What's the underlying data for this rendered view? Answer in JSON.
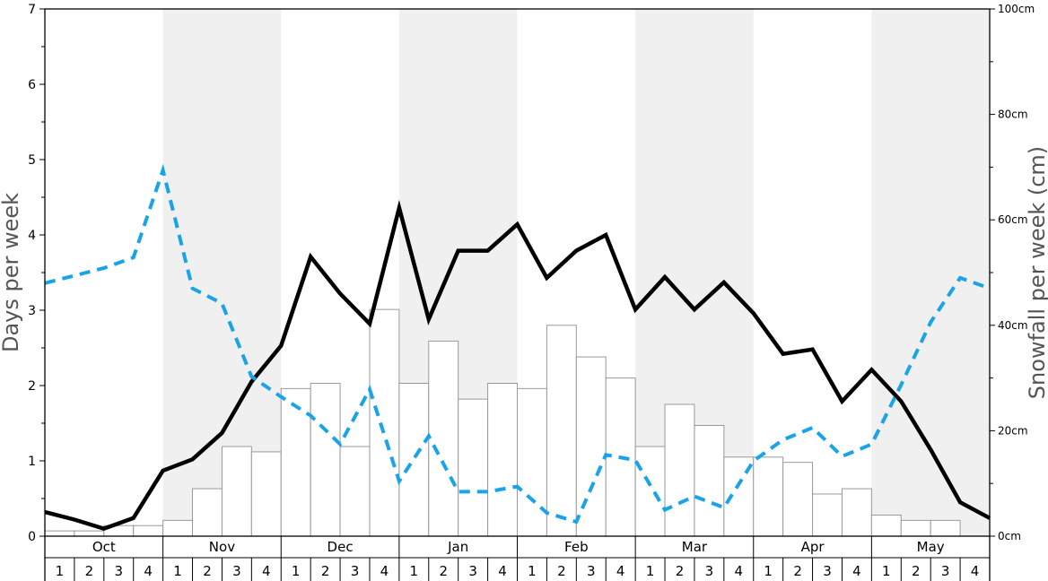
{
  "chart_data": {
    "type": "bar",
    "left_axis": {
      "label": "Days per week",
      "ylim": [
        0,
        7
      ],
      "ticks": [
        "0",
        "1",
        "2",
        "3",
        "4",
        "5",
        "6",
        "7"
      ]
    },
    "right_axis": {
      "label": "Snowfall per week (cm)",
      "ylim": [
        0,
        100
      ],
      "ticks": [
        "0cm",
        "20cm",
        "40cm",
        "60cm",
        "80cm",
        "100cm"
      ]
    },
    "months": [
      "Oct",
      "Nov",
      "Dec",
      "Jan",
      "Feb",
      "Mar",
      "Apr",
      "May"
    ],
    "weeks": [
      "1",
      "2",
      "3",
      "4"
    ],
    "shaded_months": [
      "Nov",
      "Jan",
      "Mar",
      "May"
    ],
    "snowfall_cm": [
      1.0,
      1.0,
      2.0,
      2.0,
      3.0,
      9.0,
      17.0,
      16.0,
      28.0,
      29.0,
      17.0,
      43.0,
      29.0,
      37.0,
      26.0,
      29.0,
      28.0,
      40.0,
      34.0,
      30.0,
      17.0,
      25.0,
      21.0,
      15.0,
      15.0,
      14.0,
      8.0,
      9.0,
      4.0,
      3.0,
      3.0,
      0.0
    ],
    "series": [
      {
        "style": "solid-black",
        "axis": "left",
        "values": [
          0.32,
          0.22,
          0.1,
          0.24,
          0.87,
          1.02,
          1.37,
          2.05,
          2.53,
          3.71,
          3.22,
          2.82,
          4.36,
          2.88,
          3.79,
          3.79,
          4.14,
          3.43,
          3.79,
          4.0,
          3.01,
          3.44,
          3.01,
          3.37,
          2.96,
          2.42,
          2.48,
          1.79,
          2.21,
          1.79,
          1.15,
          0.45,
          0.24
        ]
      },
      {
        "style": "dashed-blue",
        "axis": "left",
        "values": [
          3.36,
          3.46,
          3.56,
          3.7,
          4.86,
          3.29,
          3.09,
          2.12,
          1.85,
          1.6,
          1.22,
          1.95,
          0.73,
          1.33,
          0.59,
          0.59,
          0.66,
          0.31,
          0.19,
          1.08,
          1.01,
          0.35,
          0.53,
          0.38,
          1.0,
          1.28,
          1.44,
          1.06,
          1.22,
          2.01,
          2.84,
          3.43,
          3.29
        ]
      }
    ],
    "colors": {
      "snow_line": "#000000",
      "dashed_line": "#1aa3e8",
      "bar_fill": "#ffffff",
      "bar_stroke": "#999999",
      "shade": "#f0f0f0"
    }
  }
}
